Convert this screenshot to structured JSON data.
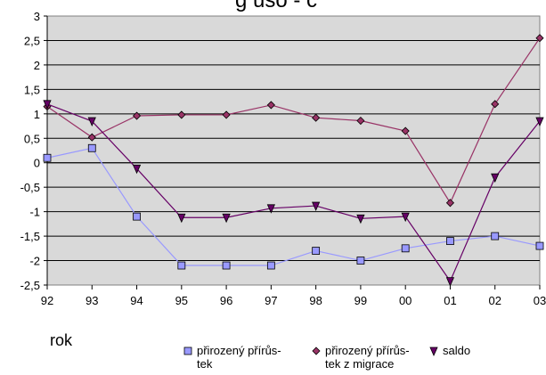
{
  "chart_data": {
    "type": "line",
    "title": "g uso - č",
    "xlabel": "rok",
    "ylabel": "",
    "categories": [
      "92",
      "93",
      "94",
      "95",
      "96",
      "97",
      "98",
      "99",
      "00",
      "01",
      "02",
      "03"
    ],
    "ylim": [
      -2.5,
      3
    ],
    "yticks": [
      "3",
      "2,5",
      "2",
      "1,5",
      "1",
      "0,5",
      "0",
      "-0,5",
      "-1",
      "-1,5",
      "-2",
      "-2,5"
    ],
    "grid": true,
    "plot_background": "#d9d9d9",
    "legend_position": "bottom",
    "series": [
      {
        "name": "přirozený přírůs- tek",
        "legend_lines": [
          "přirozený přírůs-",
          "tek"
        ],
        "marker": "square",
        "color": "#9999ff",
        "marker_fill": "#9999ff",
        "values": [
          0.1,
          0.3,
          -1.1,
          -2.1,
          -2.1,
          -2.1,
          -1.8,
          -2.0,
          -1.75,
          -1.6,
          -1.5,
          -1.7
        ]
      },
      {
        "name": "přirozený přírůs- tek z migrace",
        "legend_lines": [
          "přirozený přírůs-",
          "tek z migrace"
        ],
        "marker": "diamond",
        "color": "#993366",
        "marker_fill": "#993366",
        "values": [
          1.15,
          0.52,
          0.96,
          0.98,
          0.98,
          1.18,
          0.92,
          0.86,
          0.65,
          -0.82,
          1.2,
          2.55
        ]
      },
      {
        "name": "saldo",
        "legend_lines": [
          "saldo"
        ],
        "marker": "triangle-down",
        "color": "#660066",
        "marker_fill": "#660066",
        "values": [
          1.2,
          0.85,
          -0.12,
          -1.12,
          -1.12,
          -0.93,
          -0.88,
          -1.14,
          -1.1,
          -2.42,
          -0.3,
          0.85
        ]
      }
    ]
  }
}
